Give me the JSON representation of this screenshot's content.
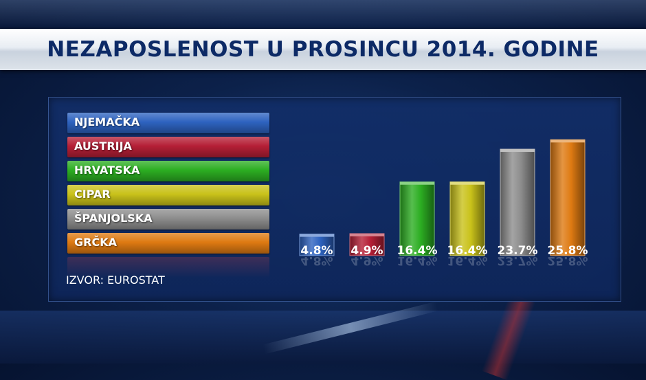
{
  "title": "NEZAPOSLENOST U PROSINCU 2014. GODINE",
  "source": "IZVOR: EUROSTAT",
  "chart_data": {
    "type": "bar",
    "title": "NEZAPOSLENOST U PROSINCU 2014. GODINE",
    "categories": [
      "NJEMAČKA",
      "AUSTRIJA",
      "HRVATSKA",
      "CIPAR",
      "ŠPANJOLSKA",
      "GRČKA"
    ],
    "values": [
      4.8,
      4.9,
      16.4,
      16.4,
      23.7,
      25.8
    ],
    "value_labels": [
      "4.8%",
      "4.9%",
      "16.4%",
      "16.4%",
      "23.7%",
      "25.8%"
    ],
    "colors": [
      "#2e63c0",
      "#b51f36",
      "#2cae22",
      "#c9c21a",
      "#8d8d8d",
      "#de7a12"
    ],
    "unit": "%",
    "ylim": [
      0,
      26
    ],
    "grid": false,
    "legend": "left"
  }
}
